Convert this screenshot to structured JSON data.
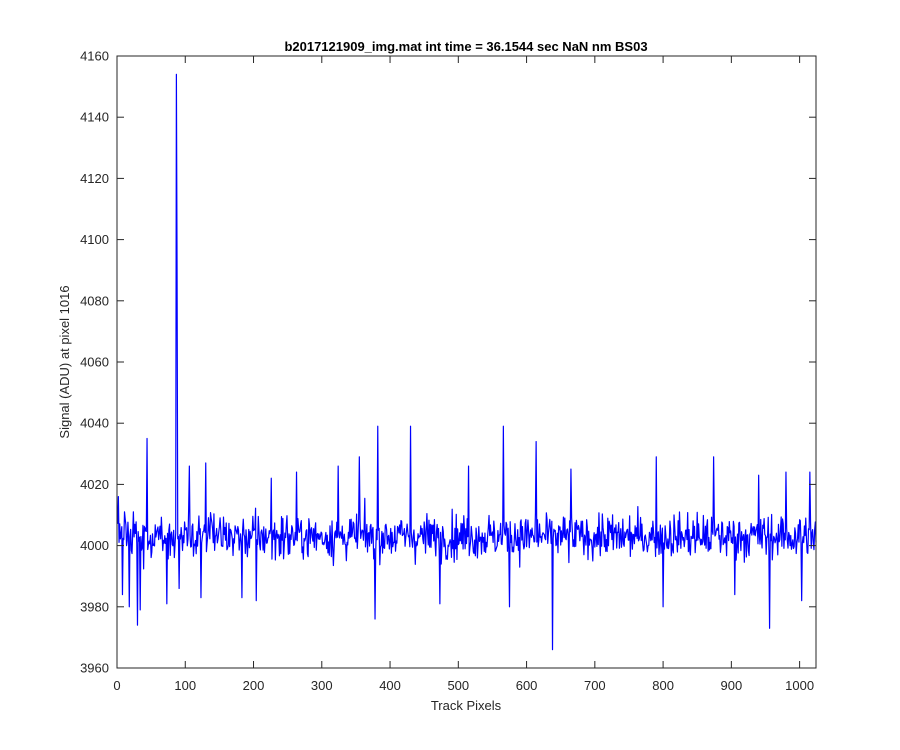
{
  "chart_data": {
    "type": "line",
    "title": "b2017121909_img.mat int time = 36.1544 sec  NaN nm BS03",
    "xlabel": "Track Pixels",
    "ylabel": "Signal (ADU) at pixel 1016",
    "xlim": [
      0,
      1024
    ],
    "ylim": [
      3960,
      4160
    ],
    "xticks": [
      "0",
      "100",
      "200",
      "300",
      "400",
      "500",
      "600",
      "700",
      "800",
      "900",
      "1000"
    ],
    "yticks": [
      "3960",
      "3980",
      "4000",
      "4020",
      "4040",
      "4060",
      "4080",
      "4100",
      "4120",
      "4140",
      "4160"
    ],
    "grid": false,
    "line_color": "#0000ff",
    "series": [
      {
        "x_start": 1,
        "x_step": 1,
        "baseline": 4003,
        "noise_amplitude": 8,
        "n_points": 1024,
        "notable_points": [
          {
            "x": 2,
            "y": 4016
          },
          {
            "x": 8,
            "y": 3984
          },
          {
            "x": 18,
            "y": 3980
          },
          {
            "x": 30,
            "y": 3974
          },
          {
            "x": 34,
            "y": 3979
          },
          {
            "x": 44,
            "y": 4035
          },
          {
            "x": 73,
            "y": 3981
          },
          {
            "x": 87,
            "y": 4154
          },
          {
            "x": 88,
            "y": 4090
          },
          {
            "x": 91,
            "y": 3986
          },
          {
            "x": 106,
            "y": 4026
          },
          {
            "x": 123,
            "y": 3983
          },
          {
            "x": 130,
            "y": 4027
          },
          {
            "x": 183,
            "y": 3983
          },
          {
            "x": 204,
            "y": 3982
          },
          {
            "x": 226,
            "y": 4022
          },
          {
            "x": 263,
            "y": 4024
          },
          {
            "x": 324,
            "y": 4026
          },
          {
            "x": 355,
            "y": 4029
          },
          {
            "x": 378,
            "y": 3976
          },
          {
            "x": 382,
            "y": 4039
          },
          {
            "x": 430,
            "y": 4039
          },
          {
            "x": 473,
            "y": 3981
          },
          {
            "x": 515,
            "y": 4026
          },
          {
            "x": 566,
            "y": 4039
          },
          {
            "x": 575,
            "y": 3980
          },
          {
            "x": 614,
            "y": 4034
          },
          {
            "x": 638,
            "y": 3966
          },
          {
            "x": 665,
            "y": 4025
          },
          {
            "x": 790,
            "y": 4029
          },
          {
            "x": 800,
            "y": 3980
          },
          {
            "x": 874,
            "y": 4029
          },
          {
            "x": 905,
            "y": 3984
          },
          {
            "x": 940,
            "y": 4023
          },
          {
            "x": 956,
            "y": 3973
          },
          {
            "x": 980,
            "y": 4024
          },
          {
            "x": 1003,
            "y": 3982
          },
          {
            "x": 1015,
            "y": 4024
          }
        ]
      }
    ]
  }
}
